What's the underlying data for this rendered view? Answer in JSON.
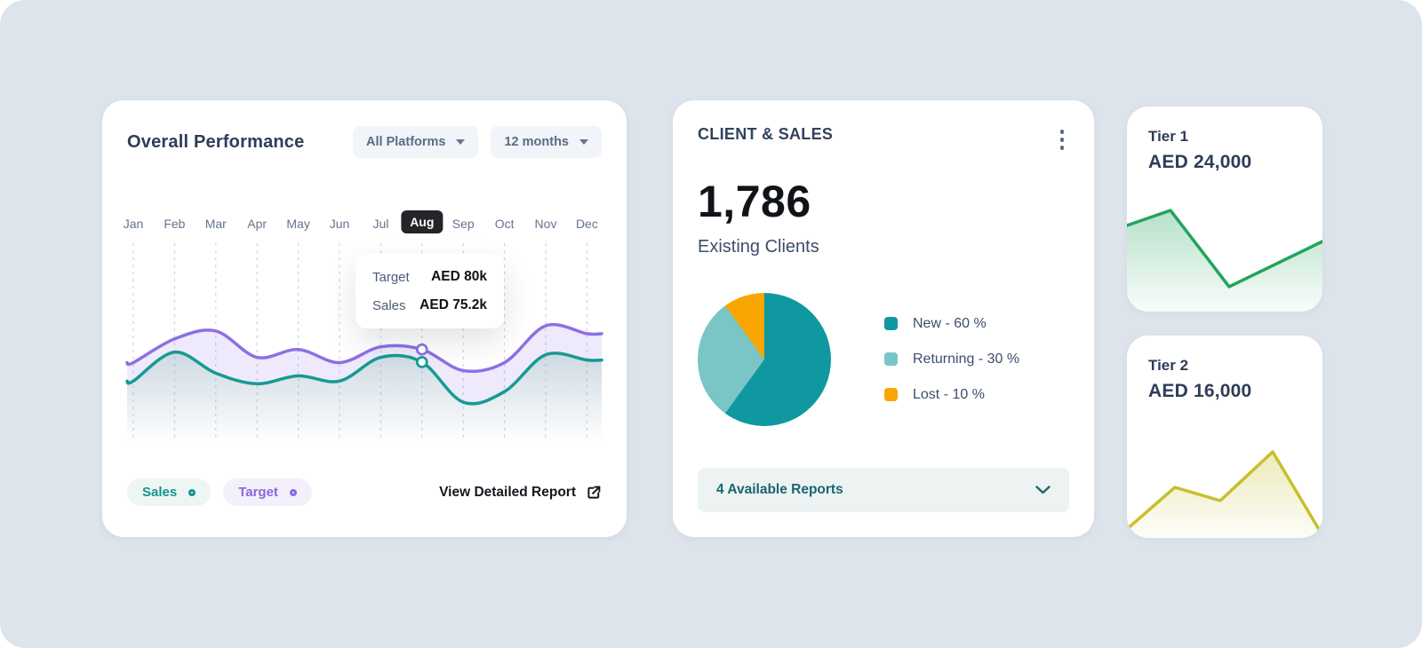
{
  "page": {
    "background": "#dee4eb"
  },
  "performance_card": {
    "title": "Overall Performance",
    "filters": [
      {
        "label": "All Platforms"
      },
      {
        "label": "12 months"
      }
    ],
    "legend": [
      {
        "label": "Sales",
        "color": "#12948d"
      },
      {
        "label": "Target",
        "color": "#8b66e0"
      }
    ],
    "report_link": "View Detailed Report"
  },
  "client_sales_card": {
    "title": "CLIENT & SALES",
    "metric_value": "1,786",
    "metric_label": "Existing Clients",
    "reports_bar_label": "4 Available Reports",
    "menu_icon": "kebab-menu"
  },
  "chart_data": [
    {
      "type": "line",
      "title": "Overall Performance",
      "unit": "AED k",
      "x": [
        "Jan",
        "Feb",
        "Mar",
        "Apr",
        "May",
        "Jun",
        "Jul",
        "Aug",
        "Sep",
        "Oct",
        "Nov",
        "Dec"
      ],
      "highlighted_month": "Aug",
      "grid": "vertical-dashed",
      "series": [
        {
          "name": "Target",
          "color": "#8d6fe3",
          "values": [
            75,
            84,
            87,
            77,
            80,
            75,
            81,
            80,
            72,
            75,
            89,
            86
          ]
        },
        {
          "name": "Sales",
          "color": "#179a93",
          "values": [
            68,
            79,
            71,
            67,
            70,
            68,
            77,
            75.2,
            60,
            64,
            78,
            76
          ]
        }
      ],
      "tooltip": {
        "month": "Aug",
        "rows": [
          {
            "label": "Target",
            "value": "AED 80k"
          },
          {
            "label": "Sales",
            "value": "AED 75.2k"
          }
        ]
      }
    },
    {
      "type": "pie",
      "slices": [
        {
          "label": "New",
          "pct": 60,
          "color": "#0f98a0"
        },
        {
          "label": "Returning",
          "pct": 30,
          "color": "#7ac5c5"
        },
        {
          "label": "Lost",
          "pct": 10,
          "color": "#f9a602"
        }
      ],
      "legend_format": "{label} - {pct} %"
    },
    {
      "type": "line",
      "title": "Tier 1",
      "value": "AED 24,000",
      "color": "#22a45d",
      "points": [
        [
          0,
          33
        ],
        [
          49,
          16
        ],
        [
          115,
          102
        ],
        [
          220,
          51
        ]
      ]
    },
    {
      "type": "line",
      "title": "Tier 2",
      "value": "AED 16,000",
      "color": "#c6c02b",
      "points": [
        [
          0,
          120
        ],
        [
          54,
          73
        ],
        [
          105,
          88
        ],
        [
          164,
          33
        ],
        [
          220,
          127
        ]
      ]
    }
  ]
}
